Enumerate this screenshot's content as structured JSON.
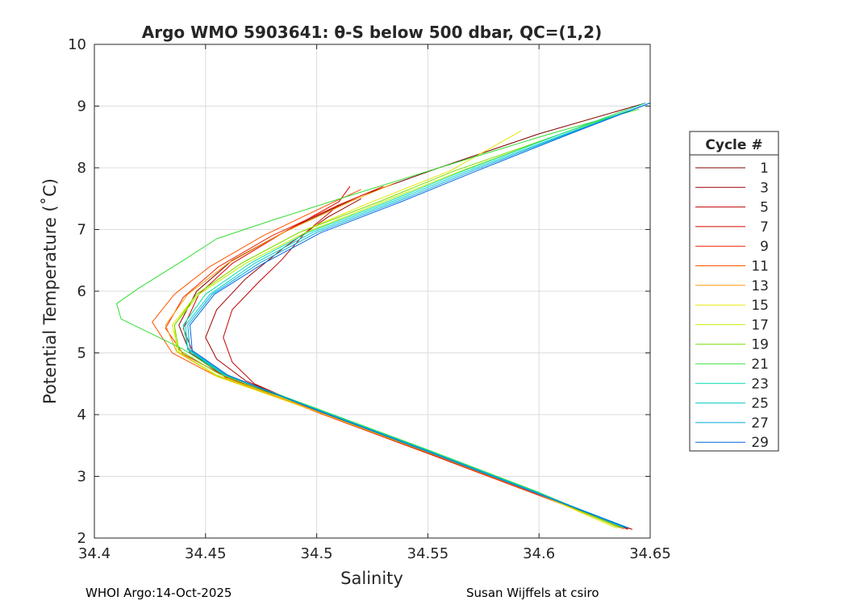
{
  "chart_data": {
    "type": "line",
    "title": "Argo WMO 5903641: θ-S below 500 dbar,  QC=(1,2)",
    "xlabel": "Salinity",
    "ylabel": "Potential Temperature (˚C)",
    "xlim": [
      34.4,
      34.65
    ],
    "ylim": [
      2,
      10
    ],
    "xticks": [
      "34.4",
      "34.45",
      "34.5",
      "34.55",
      "34.6",
      "34.65"
    ],
    "yticks": [
      "2",
      "3",
      "4",
      "5",
      "6",
      "7",
      "8",
      "9",
      "10"
    ],
    "grid": true,
    "legend": {
      "title": "Cycle #",
      "placement": "right-outside"
    },
    "series": [
      {
        "name": "1",
        "color": "#800000",
        "points": [
          [
            34.64,
            2.15
          ],
          [
            34.6,
            2.7
          ],
          [
            34.55,
            3.38
          ],
          [
            34.5,
            4.05
          ],
          [
            34.46,
            4.62
          ],
          [
            34.443,
            5.0
          ],
          [
            34.438,
            5.45
          ],
          [
            34.446,
            6.0
          ],
          [
            34.462,
            6.5
          ],
          [
            34.49,
            7.05
          ],
          [
            34.52,
            7.55
          ],
          [
            34.555,
            8.0
          ],
          [
            34.6,
            8.55
          ],
          [
            34.648,
            9.05
          ]
        ]
      },
      {
        "name": "3",
        "color": "#a00000",
        "points": [
          [
            34.642,
            2.14
          ],
          [
            34.602,
            2.68
          ],
          [
            34.552,
            3.36
          ],
          [
            34.502,
            4.03
          ],
          [
            34.468,
            4.55
          ],
          [
            34.455,
            4.9
          ],
          [
            34.45,
            5.25
          ],
          [
            34.455,
            5.7
          ],
          [
            34.468,
            6.2
          ],
          [
            34.485,
            6.7
          ],
          [
            34.505,
            7.2
          ],
          [
            34.52,
            7.5
          ]
        ]
      },
      {
        "name": "5",
        "color": "#c00000",
        "points": [
          [
            34.641,
            2.15
          ],
          [
            34.6,
            2.71
          ],
          [
            34.551,
            3.38
          ],
          [
            34.5,
            4.06
          ],
          [
            34.472,
            4.5
          ],
          [
            34.462,
            4.85
          ],
          [
            34.458,
            5.25
          ],
          [
            34.462,
            5.7
          ],
          [
            34.474,
            6.15
          ],
          [
            34.484,
            6.5
          ],
          [
            34.495,
            6.95
          ],
          [
            34.51,
            7.4
          ]
        ]
      },
      {
        "name": "7",
        "color": "#dd0000",
        "points": [
          [
            34.64,
            2.16
          ],
          [
            34.6,
            2.72
          ],
          [
            34.55,
            3.4
          ],
          [
            34.5,
            4.07
          ],
          [
            34.46,
            4.58
          ],
          [
            34.445,
            4.95
          ],
          [
            34.44,
            5.4
          ],
          [
            34.447,
            5.95
          ],
          [
            34.462,
            6.45
          ],
          [
            34.485,
            6.95
          ],
          [
            34.51,
            7.45
          ],
          [
            34.515,
            7.7
          ]
        ]
      },
      {
        "name": "9",
        "color": "#ee2200",
        "points": [
          [
            34.64,
            2.14
          ],
          [
            34.6,
            2.69
          ],
          [
            34.55,
            3.37
          ],
          [
            34.5,
            4.04
          ],
          [
            34.46,
            4.6
          ],
          [
            34.44,
            4.98
          ],
          [
            34.432,
            5.4
          ],
          [
            34.44,
            5.9
          ],
          [
            34.456,
            6.4
          ],
          [
            34.48,
            6.9
          ],
          [
            34.51,
            7.4
          ],
          [
            34.53,
            7.7
          ]
        ]
      },
      {
        "name": "11",
        "color": "#ff5500",
        "points": [
          [
            34.638,
            2.15
          ],
          [
            34.6,
            2.7
          ],
          [
            34.55,
            3.39
          ],
          [
            34.5,
            4.06
          ],
          [
            34.455,
            4.62
          ],
          [
            34.435,
            5.0
          ],
          [
            34.426,
            5.5
          ],
          [
            34.436,
            5.95
          ],
          [
            34.452,
            6.4
          ],
          [
            34.476,
            6.9
          ],
          [
            34.505,
            7.4
          ],
          [
            34.52,
            7.65
          ]
        ]
      },
      {
        "name": "13",
        "color": "#ff9900",
        "points": [
          [
            34.638,
            2.16
          ],
          [
            34.6,
            2.72
          ],
          [
            34.55,
            3.4
          ],
          [
            34.5,
            4.07
          ],
          [
            34.455,
            4.63
          ],
          [
            34.437,
            5.02
          ],
          [
            34.432,
            5.45
          ],
          [
            34.442,
            5.95
          ],
          [
            34.46,
            6.45
          ],
          [
            34.485,
            6.95
          ],
          [
            34.515,
            7.45
          ],
          [
            34.535,
            7.75
          ]
        ]
      },
      {
        "name": "15",
        "color": "#e6e600",
        "points": [
          [
            34.635,
            2.16
          ],
          [
            34.6,
            2.71
          ],
          [
            34.55,
            3.39
          ],
          [
            34.5,
            4.05
          ],
          [
            34.455,
            4.62
          ],
          [
            34.438,
            5.02
          ],
          [
            34.435,
            5.45
          ],
          [
            34.446,
            5.95
          ],
          [
            34.466,
            6.45
          ],
          [
            34.492,
            6.95
          ],
          [
            34.525,
            7.45
          ],
          [
            34.56,
            7.95
          ],
          [
            34.592,
            8.6
          ]
        ]
      },
      {
        "name": "17",
        "color": "#bbee00",
        "points": [
          [
            34.636,
            2.17
          ],
          [
            34.6,
            2.72
          ],
          [
            34.55,
            3.41
          ],
          [
            34.5,
            4.08
          ],
          [
            34.455,
            4.64
          ],
          [
            34.437,
            5.03
          ],
          [
            34.436,
            5.45
          ],
          [
            34.447,
            5.95
          ],
          [
            34.468,
            6.45
          ],
          [
            34.495,
            6.95
          ],
          [
            34.53,
            7.45
          ],
          [
            34.565,
            7.95
          ],
          [
            34.61,
            8.55
          ],
          [
            34.64,
            8.95
          ]
        ]
      },
      {
        "name": "19",
        "color": "#77dd00",
        "points": [
          [
            34.636,
            2.17
          ],
          [
            34.6,
            2.73
          ],
          [
            34.55,
            3.42
          ],
          [
            34.5,
            4.09
          ],
          [
            34.456,
            4.66
          ],
          [
            34.438,
            5.05
          ],
          [
            34.436,
            5.45
          ],
          [
            34.446,
            5.95
          ],
          [
            34.466,
            6.45
          ],
          [
            34.492,
            6.95
          ],
          [
            34.528,
            7.45
          ],
          [
            34.562,
            7.95
          ],
          [
            34.61,
            8.55
          ],
          [
            34.64,
            8.92
          ]
        ]
      },
      {
        "name": "21",
        "color": "#33dd33",
        "points": [
          [
            34.637,
            2.18
          ],
          [
            34.6,
            2.74
          ],
          [
            34.55,
            3.43
          ],
          [
            34.5,
            4.1
          ],
          [
            34.457,
            4.67
          ],
          [
            34.44,
            5.06
          ],
          [
            34.412,
            5.55
          ],
          [
            34.41,
            5.8
          ],
          [
            34.42,
            6.05
          ],
          [
            34.44,
            6.5
          ],
          [
            34.455,
            6.85
          ],
          [
            34.48,
            7.15
          ],
          [
            34.515,
            7.55
          ],
          [
            34.555,
            8.0
          ],
          [
            34.605,
            8.55
          ],
          [
            34.645,
            8.95
          ]
        ]
      },
      {
        "name": "23",
        "color": "#00ddaa",
        "points": [
          [
            34.638,
            2.17
          ],
          [
            34.6,
            2.73
          ],
          [
            34.55,
            3.42
          ],
          [
            34.5,
            4.09
          ],
          [
            34.458,
            4.66
          ],
          [
            34.442,
            5.06
          ],
          [
            34.44,
            5.45
          ],
          [
            34.45,
            5.95
          ],
          [
            34.47,
            6.45
          ],
          [
            34.496,
            6.95
          ],
          [
            34.532,
            7.45
          ],
          [
            34.566,
            7.95
          ],
          [
            34.61,
            8.55
          ],
          [
            34.648,
            9.05
          ]
        ]
      },
      {
        "name": "25",
        "color": "#00cccc",
        "points": [
          [
            34.639,
            2.17
          ],
          [
            34.6,
            2.72
          ],
          [
            34.55,
            3.41
          ],
          [
            34.5,
            4.08
          ],
          [
            34.458,
            4.65
          ],
          [
            34.442,
            5.05
          ],
          [
            34.441,
            5.45
          ],
          [
            34.452,
            5.95
          ],
          [
            34.472,
            6.45
          ],
          [
            34.498,
            6.95
          ],
          [
            34.534,
            7.45
          ],
          [
            34.568,
            7.95
          ],
          [
            34.612,
            8.55
          ],
          [
            34.65,
            9.05
          ]
        ]
      },
      {
        "name": "27",
        "color": "#00aadd",
        "points": [
          [
            34.64,
            2.17
          ],
          [
            34.6,
            2.72
          ],
          [
            34.55,
            3.41
          ],
          [
            34.5,
            4.08
          ],
          [
            34.459,
            4.65
          ],
          [
            34.443,
            5.05
          ],
          [
            34.442,
            5.45
          ],
          [
            34.453,
            5.95
          ],
          [
            34.474,
            6.45
          ],
          [
            34.5,
            6.95
          ],
          [
            34.536,
            7.45
          ],
          [
            34.57,
            7.95
          ],
          [
            34.613,
            8.55
          ],
          [
            34.65,
            9.05
          ]
        ]
      },
      {
        "name": "29",
        "color": "#0066dd",
        "points": [
          [
            34.64,
            2.16
          ],
          [
            34.6,
            2.71
          ],
          [
            34.55,
            3.4
          ],
          [
            34.5,
            4.07
          ],
          [
            34.46,
            4.64
          ],
          [
            34.444,
            5.04
          ],
          [
            34.443,
            5.45
          ],
          [
            34.454,
            5.95
          ],
          [
            34.476,
            6.45
          ],
          [
            34.502,
            6.95
          ],
          [
            34.538,
            7.45
          ],
          [
            34.572,
            7.95
          ],
          [
            34.614,
            8.55
          ],
          [
            34.65,
            9.05
          ]
        ]
      }
    ]
  },
  "footer": {
    "left": "WHOI Argo:14-Oct-2025",
    "right": "Susan Wijffels at csiro"
  }
}
